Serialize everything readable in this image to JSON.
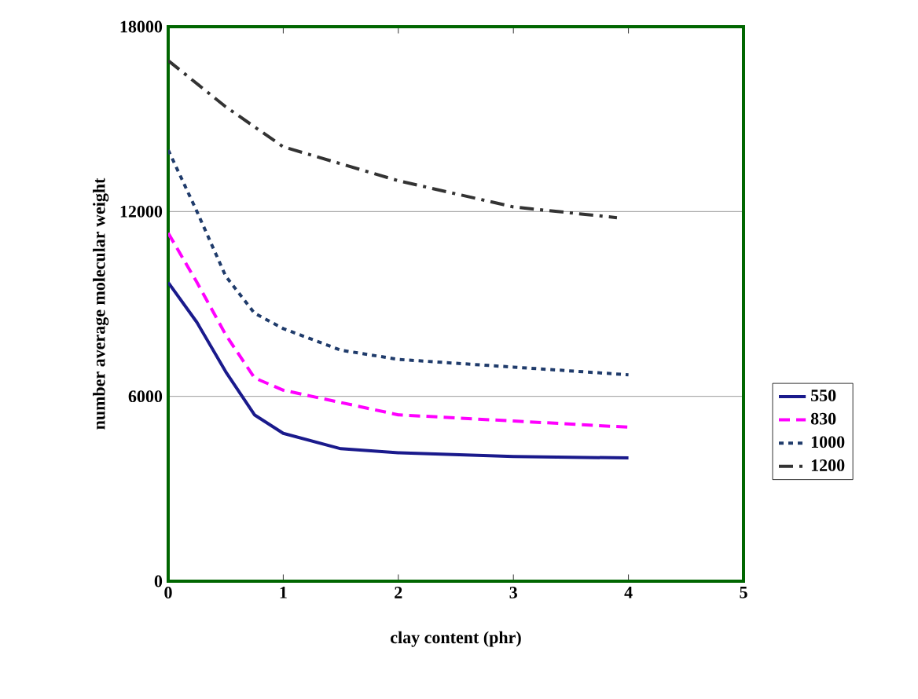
{
  "chart_data": {
    "type": "line",
    "xlabel": "clay content (phr)",
    "ylabel": "number average molecular weight",
    "xlim": [
      0,
      5
    ],
    "ylim": [
      0,
      18000
    ],
    "xticks": [
      0,
      1,
      2,
      3,
      4,
      5
    ],
    "yticks": [
      0,
      6000,
      12000,
      18000
    ],
    "grid": "y",
    "legend": "right",
    "series": [
      {
        "name": "550",
        "color": "#1a1a8c",
        "line_style": "solid",
        "x": [
          0,
          0.25,
          0.5,
          0.75,
          1,
          1.5,
          2,
          3,
          4
        ],
        "values": [
          9700,
          8400,
          6800,
          5400,
          4800,
          4300,
          4170,
          4050,
          4000
        ]
      },
      {
        "name": "830",
        "color": "#ff00ff",
        "line_style": "dashed",
        "x": [
          0,
          0.25,
          0.5,
          0.75,
          1,
          1.5,
          2,
          3,
          4
        ],
        "values": [
          11300,
          9700,
          8000,
          6600,
          6200,
          5800,
          5400,
          5200,
          5000
        ]
      },
      {
        "name": "1000",
        "color": "#1f3b6b",
        "line_style": "dotted",
        "x": [
          0,
          0.25,
          0.5,
          0.75,
          1,
          1.5,
          2,
          3,
          4
        ],
        "values": [
          14000,
          12000,
          9900,
          8700,
          8200,
          7500,
          7200,
          6950,
          6700
        ]
      },
      {
        "name": "1200",
        "color": "#333333",
        "line_style": "dashdot",
        "x": [
          0,
          0.5,
          1,
          2,
          3,
          3.9
        ],
        "values": [
          16900,
          15400,
          14100,
          13000,
          12150,
          11800
        ]
      }
    ]
  }
}
